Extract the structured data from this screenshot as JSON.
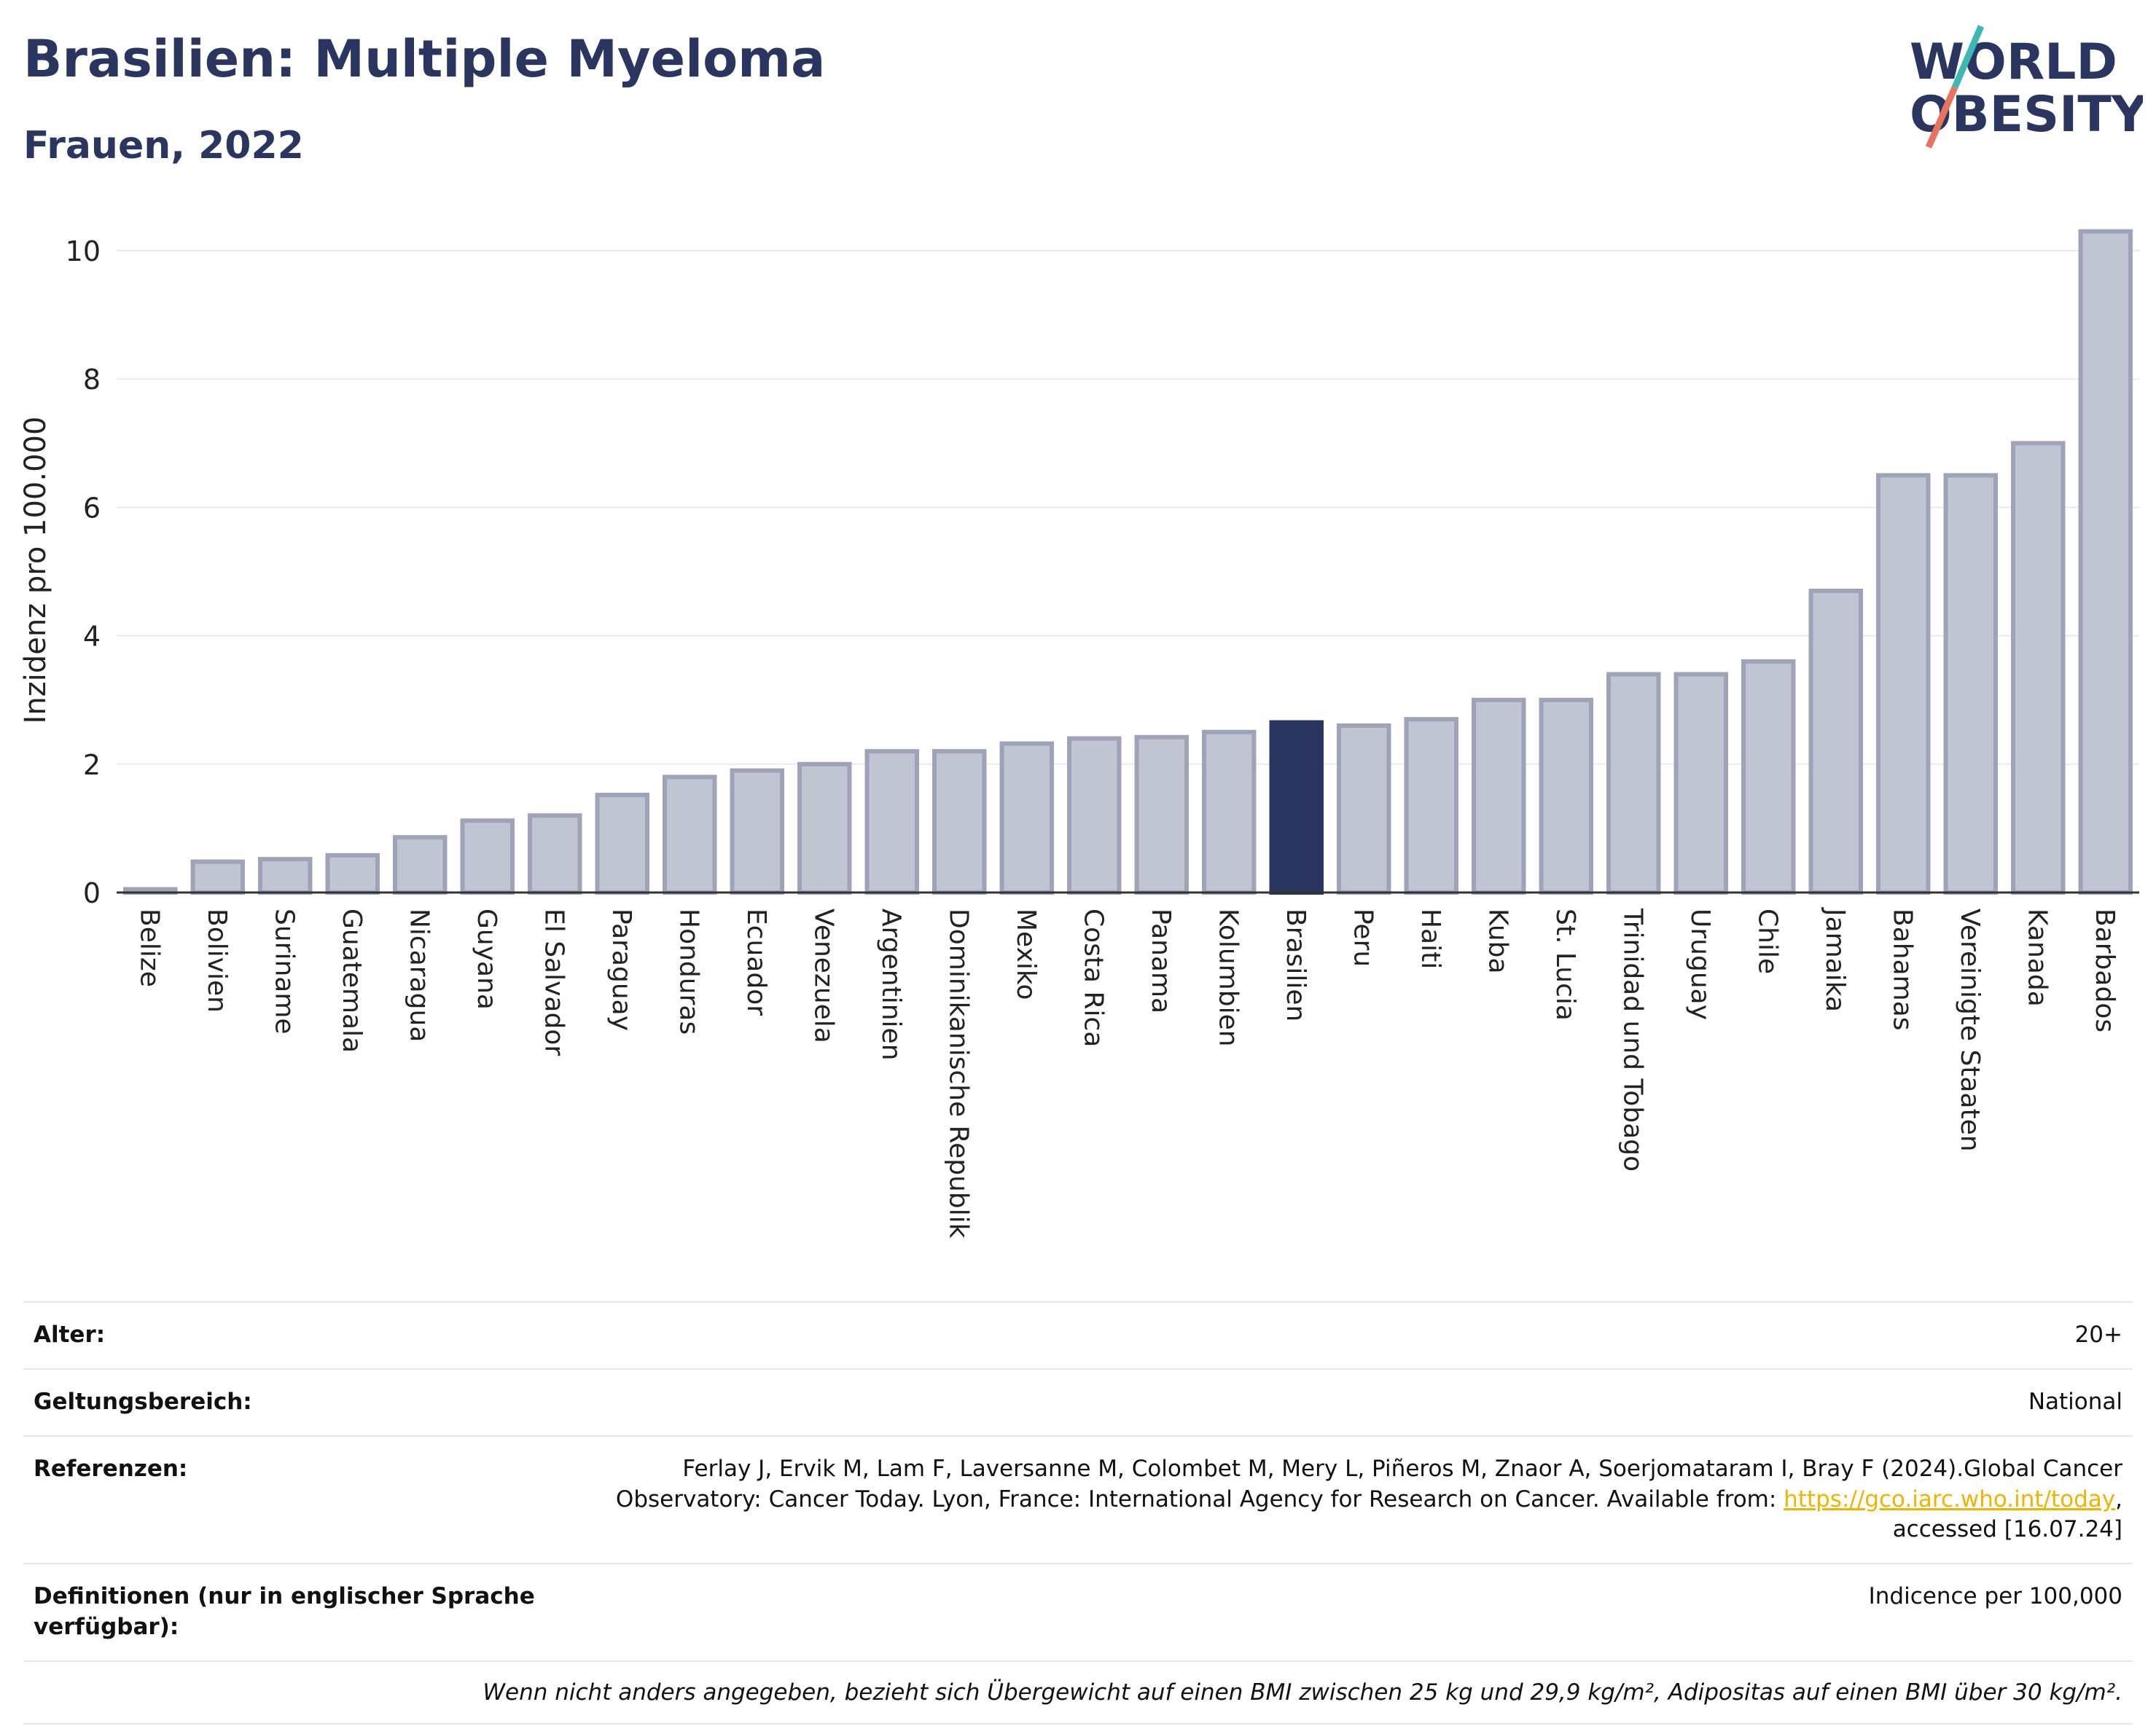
{
  "title": "Brasilien: Multiple Myeloma",
  "subtitle": "Frauen, 2022",
  "logo": {
    "line1": "WORLD",
    "line2": "OBESITY"
  },
  "colors": {
    "bar": "#c1c4d1",
    "bar_stroke": "#9ea3b9",
    "highlight": "#2a3560",
    "grid": "#e8e9ef",
    "axis": "#333333"
  },
  "chart_data": {
    "type": "bar",
    "ylabel": "Inzidenz pro 100.000",
    "ylim": [
      0,
      10.5
    ],
    "yticks": [
      0,
      2,
      4,
      6,
      8,
      10
    ],
    "highlight": "Brasilien",
    "categories": [
      "Belize",
      "Bolivien",
      "Suriname",
      "Guatemala",
      "Nicaragua",
      "Guyana",
      "El Salvador",
      "Paraguay",
      "Honduras",
      "Ecuador",
      "Venezuela",
      "Argentinien",
      "Dominikanische Republik",
      "Mexiko",
      "Costa Rica",
      "Panama",
      "Kolumbien",
      "Brasilien",
      "Peru",
      "Haiti",
      "Kuba",
      "St. Lucia",
      "Trinidad und Tobago",
      "Uruguay",
      "Chile",
      "Jamaika",
      "Bahamas",
      "Vereinigte Staaten",
      "Kanada",
      "Barbados"
    ],
    "values": [
      0.05,
      0.48,
      0.52,
      0.58,
      0.86,
      1.12,
      1.2,
      1.52,
      1.8,
      1.9,
      2.0,
      2.2,
      2.2,
      2.32,
      2.4,
      2.42,
      2.5,
      2.65,
      2.6,
      2.7,
      3.0,
      3.0,
      3.4,
      3.4,
      3.6,
      4.7,
      6.5,
      6.5,
      7.0,
      10.3
    ]
  },
  "info": {
    "age_label": "Alter:",
    "age_value": "20+",
    "scope_label": "Geltungsbereich:",
    "scope_value": "National",
    "ref_label": "Referenzen:",
    "ref_text_1": "Ferlay J, Ervik M, Lam F, Laversanne M, Colombet M, Mery L, Piñeros M, Znaor A, Soerjomataram I, Bray F (2024).Global Cancer",
    "ref_text_2": "Observatory: Cancer Today. Lyon, France: International Agency for Research on Cancer. Available from:",
    "ref_link": "https://gco.iarc.who.int/today",
    "ref_text_3": "accessed [16.07.24]",
    "def_label": "Definitionen (nur in englischer Sprache verfügbar):",
    "def_value": "Indicence per 100,000",
    "note": "Wenn nicht anders angegeben, bezieht sich Übergewicht auf einen BMI zwischen 25 kg und 29,9 kg/m², Adipositas auf einen BMI über 30 kg/m²."
  }
}
